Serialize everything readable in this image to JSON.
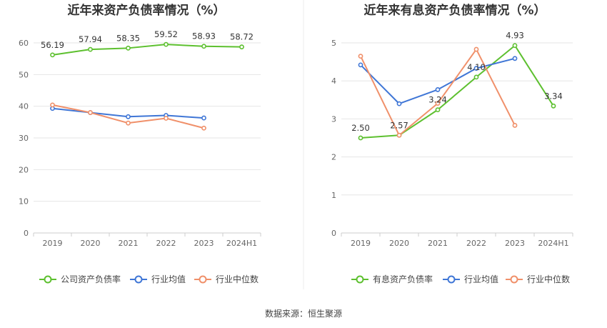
{
  "colors": {
    "company": "#5dc02f",
    "industry_avg": "#3f76d6",
    "industry_median": "#f0906a"
  },
  "chart_data": [
    {
      "type": "line",
      "title": "近年来资产负债率情况（%）",
      "categories": [
        "2019",
        "2020",
        "2021",
        "2022",
        "2023",
        "2024H1"
      ],
      "ylim": [
        0,
        60
      ],
      "yticks": [
        "0",
        "10",
        "20",
        "30",
        "40",
        "50",
        "60"
      ],
      "grid": true,
      "legend_position": "bottom",
      "series": [
        {
          "name": "公司资产负债率",
          "color_key": "company",
          "values": [
            56.19,
            57.94,
            58.35,
            59.52,
            58.93,
            58.72
          ],
          "labels": [
            "56.19",
            "57.94",
            "58.35",
            "59.52",
            "58.93",
            "58.72"
          ]
        },
        {
          "name": "行业均值",
          "color_key": "industry_avg",
          "values": [
            39.3,
            38.0,
            36.7,
            37.1,
            36.3,
            null
          ]
        },
        {
          "name": "行业中位数",
          "color_key": "industry_median",
          "values": [
            40.4,
            38.0,
            34.7,
            36.2,
            33.1,
            null
          ]
        }
      ]
    },
    {
      "type": "line",
      "title": "近年来有息资产负债率情况（%）",
      "categories": [
        "2019",
        "2020",
        "2021",
        "2022",
        "2023",
        "2024H1"
      ],
      "ylim": [
        0,
        5
      ],
      "yticks": [
        "0",
        "1",
        "2",
        "3",
        "4",
        "5"
      ],
      "grid": true,
      "legend_position": "bottom",
      "series": [
        {
          "name": "有息资产负债率",
          "color_key": "company",
          "values": [
            2.5,
            2.57,
            3.24,
            4.1,
            4.93,
            3.34
          ],
          "labels": [
            "2.50",
            "2.57",
            "3.24",
            "4.10",
            "4.93",
            "3.34"
          ]
        },
        {
          "name": "行业均值",
          "color_key": "industry_avg",
          "values": [
            4.42,
            3.4,
            3.77,
            4.33,
            4.59,
            null
          ]
        },
        {
          "name": "行业中位数",
          "color_key": "industry_median",
          "values": [
            4.65,
            2.57,
            3.41,
            4.83,
            2.83,
            null
          ]
        }
      ]
    }
  ],
  "source": "数据来源：恒生聚源"
}
